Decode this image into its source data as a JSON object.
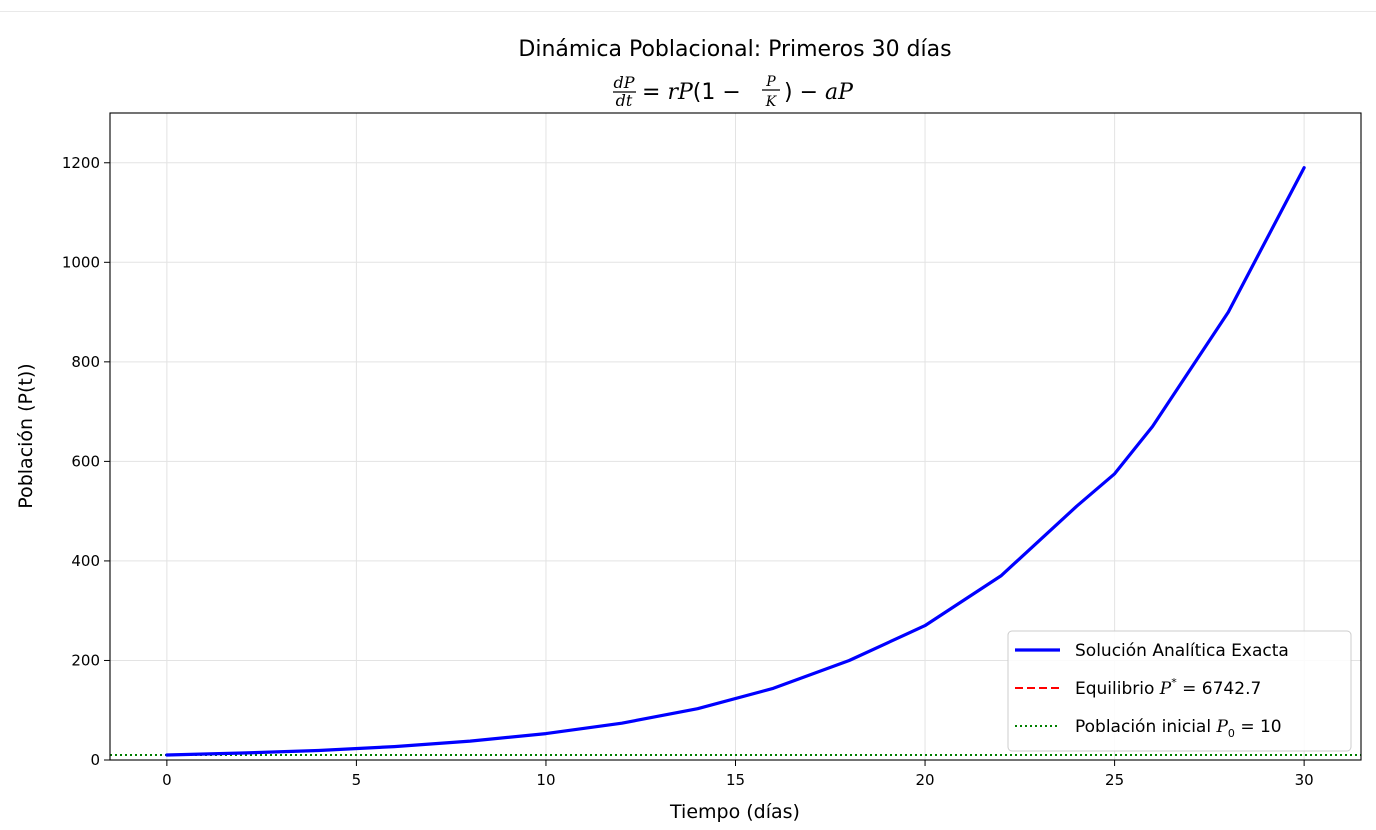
{
  "chart_data": {
    "type": "line",
    "title": "Dinámica Poblacional: Primeros 30 días",
    "subtitle": "dP/dt = rP(1 − P/K) − aP",
    "xlabel": "Tiempo (días)",
    "ylabel": "Población (P(t))",
    "xlim": [
      -1.5,
      31.5
    ],
    "ylim": [
      0,
      1300
    ],
    "xticks": [
      0,
      5,
      10,
      15,
      20,
      25,
      30
    ],
    "yticks": [
      0,
      200,
      400,
      600,
      800,
      1000,
      1200
    ],
    "grid": true,
    "legend_position": "bottom-right",
    "colors": {
      "solution": "#0000ff",
      "equilibrium": "#ff0000",
      "initial": "#008000"
    },
    "series": [
      {
        "name": "Solución Analítica Exacta",
        "style": "solid",
        "x": [
          0,
          2,
          4,
          6,
          8,
          10,
          12,
          14,
          16,
          18,
          20,
          22,
          24,
          25,
          26,
          28,
          30
        ],
        "y": [
          10,
          14,
          19,
          27,
          38,
          53,
          74,
          103,
          144,
          200,
          270,
          370,
          510,
          575,
          670,
          900,
          1190
        ]
      },
      {
        "name": "Equilibrio",
        "style": "dashed",
        "y_constant": 6742.7
      },
      {
        "name": "Población inicial",
        "style": "dotted",
        "y_constant": 10
      }
    ],
    "legend": [
      {
        "label": "Solución Analítica Exacta",
        "style": "solid",
        "color": "#0000ff"
      },
      {
        "label_prefix": "Equilibrio ",
        "math": "P* = 6742.7",
        "style": "dashed",
        "color": "#ff0000"
      },
      {
        "label_prefix": "Población inicial ",
        "math": "P₀ = 10",
        "style": "dotted",
        "color": "#008000"
      }
    ]
  }
}
